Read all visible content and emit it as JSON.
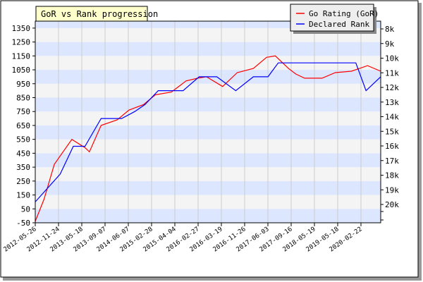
{
  "chart_data": {
    "type": "line",
    "title": "GoR vs Rank progression",
    "x": [
      "2012-05-26",
      "2012-11-24",
      "2013-05-18",
      "2013-09-07",
      "2014-06-07",
      "2015-02-28",
      "2015-04-04",
      "2016-02-27",
      "2016-03-19",
      "2016-11-26",
      "2017-06-03",
      "2017-09-16",
      "2018-05-19",
      "2019-05-18",
      "2020-02-22"
    ],
    "x_ticks": [
      "2012-05-26",
      "2012-11-24",
      "2013-05-18",
      "2013-09-07",
      "2014-06-07",
      "2015-02-28",
      "2015-04-04",
      "2016-02-27",
      "2016-03-19",
      "2016-11-26",
      "2017-06-03",
      "2017-09-16",
      "2018-05-19",
      "2019-05-18",
      "2020-02-22"
    ],
    "y_left_ticks": [
      -50,
      50,
      150,
      250,
      350,
      450,
      550,
      650,
      750,
      850,
      950,
      1050,
      1150,
      1250,
      1350
    ],
    "y_left_range": [
      -50,
      1400
    ],
    "y_right_ticks": [
      "8k",
      "9k",
      "10k",
      "11k",
      "12k",
      "13k",
      "14k",
      "15k",
      "16k",
      "17k",
      "18k",
      "19k",
      "20k"
    ],
    "series": [
      {
        "name": "Go Rating (GoR)",
        "color": "#ff0000",
        "points": [
          [
            0.0,
            -40
          ],
          [
            0.6,
            120
          ],
          [
            1.3,
            370
          ],
          [
            2.5,
            550
          ],
          [
            3.4,
            490
          ],
          [
            3.7,
            460
          ],
          [
            4.5,
            650
          ],
          [
            5.6,
            690
          ],
          [
            6.4,
            760
          ],
          [
            7.4,
            800
          ],
          [
            8.2,
            870
          ],
          [
            9.3,
            890
          ],
          [
            10.3,
            970
          ],
          [
            11.1,
            990
          ],
          [
            11.7,
            1000
          ],
          [
            12.8,
            930
          ],
          [
            13.8,
            1030
          ],
          [
            14.9,
            1060
          ],
          [
            15.8,
            1140
          ],
          [
            16.4,
            1150
          ],
          [
            17.3,
            1060
          ],
          [
            17.8,
            1020
          ],
          [
            18.4,
            990
          ],
          [
            19.6,
            990
          ],
          [
            20.5,
            1030
          ],
          [
            21.6,
            1040
          ],
          [
            22.7,
            1080
          ],
          [
            23.6,
            1040
          ]
        ]
      },
      {
        "name": "Declared Rank",
        "color": "#0000ff",
        "points": [
          [
            0.0,
            100
          ],
          [
            1.7,
            300
          ],
          [
            2.6,
            500
          ],
          [
            3.4,
            500
          ],
          [
            4.5,
            700
          ],
          [
            5.3,
            700
          ],
          [
            5.9,
            700
          ],
          [
            6.8,
            750
          ],
          [
            7.5,
            800
          ],
          [
            8.4,
            900
          ],
          [
            9.4,
            900
          ],
          [
            10.1,
            900
          ],
          [
            11.2,
            1000
          ],
          [
            12.4,
            1000
          ],
          [
            13.7,
            900
          ],
          [
            14.9,
            1000
          ],
          [
            15.9,
            1000
          ],
          [
            16.6,
            1100
          ],
          [
            17.3,
            1100
          ],
          [
            18.5,
            1100
          ],
          [
            19.6,
            1100
          ],
          [
            20.7,
            1100
          ],
          [
            21.9,
            1100
          ],
          [
            22.6,
            900
          ],
          [
            23.6,
            1000
          ]
        ]
      }
    ],
    "legend_position": "top-right",
    "grid": true
  }
}
